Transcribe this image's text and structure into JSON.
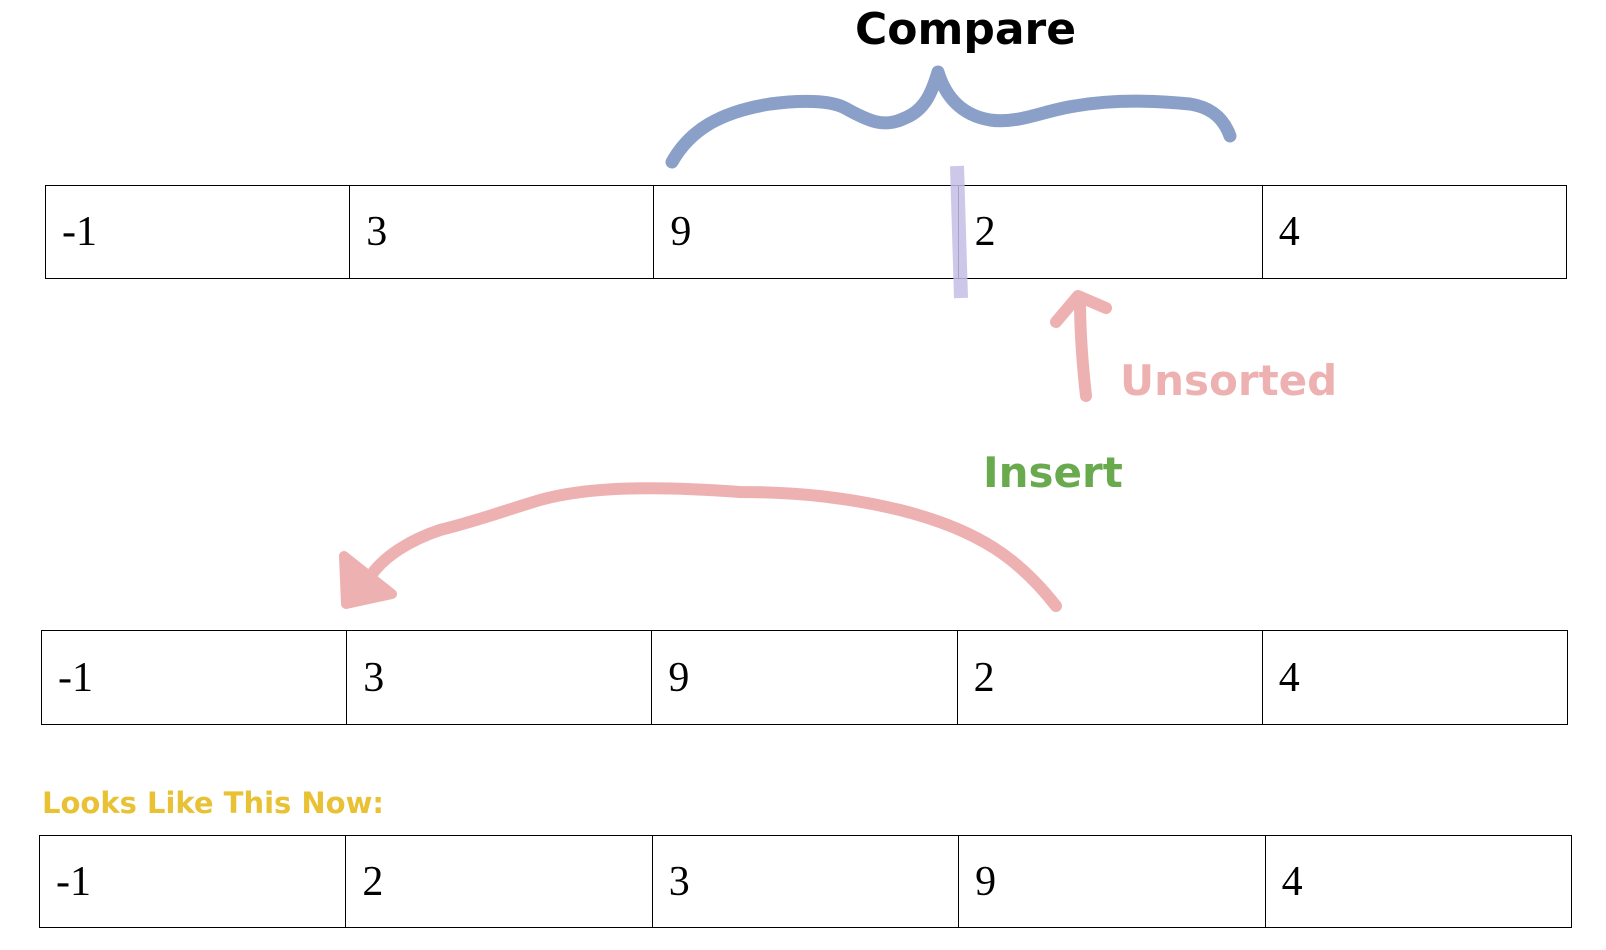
{
  "labels": {
    "compare": "Compare",
    "unsorted": "Unsorted",
    "insert": "Insert",
    "result": "Looks Like This Now:"
  },
  "rows": [
    {
      "cells": [
        "-1",
        "3",
        "9",
        "2",
        "4"
      ]
    },
    {
      "cells": [
        "-1",
        "3",
        "9",
        "2",
        "4"
      ]
    },
    {
      "cells": [
        "-1",
        "2",
        "3",
        "9",
        "4"
      ]
    }
  ],
  "colors": {
    "brace": "#8aa0c8",
    "divider": "#c4bde6",
    "unsorted": "#eeb1b1",
    "insert": "#6aaa4f",
    "result": "#e8c234"
  }
}
